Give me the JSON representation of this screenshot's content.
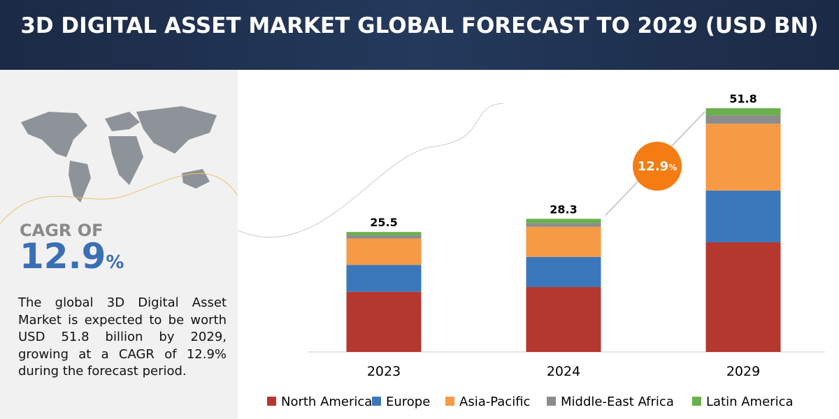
{
  "header": {
    "title": "3D DIGITAL ASSET MARKET GLOBAL FORECAST TO 2029 (USD BN)"
  },
  "sidebar": {
    "cagr_label": "CAGR OF",
    "cagr_value": "12.9",
    "cagr_unit": "%",
    "description": "The global 3D Digital Asset Market is expected to be worth USD 51.8 billion by 2029, growing at a CAGR of 12.9% during the forecast period."
  },
  "chart_data": {
    "type": "stacked_bar",
    "categories": [
      "2023",
      "2024",
      "2029"
    ],
    "series": [
      {
        "name": "North America",
        "color": "#b5382f",
        "values": [
          12.8,
          13.8,
          23.3
        ]
      },
      {
        "name": "Europe",
        "color": "#3a78bb",
        "values": [
          5.7,
          6.4,
          11.0
        ]
      },
      {
        "name": "Asia-Pacific",
        "color": "#f79a45",
        "values": [
          5.6,
          6.4,
          14.2
        ]
      },
      {
        "name": "Middle-East Africa",
        "color": "#8c8c8c",
        "values": [
          0.7,
          0.8,
          1.8
        ]
      },
      {
        "name": "Latin America",
        "color": "#6ab04c",
        "values": [
          0.7,
          0.9,
          1.5
        ]
      }
    ],
    "totals": [
      25.5,
      28.3,
      51.8
    ],
    "annotation": {
      "value": "12.9",
      "unit": "%",
      "color": "#f57c12"
    }
  }
}
